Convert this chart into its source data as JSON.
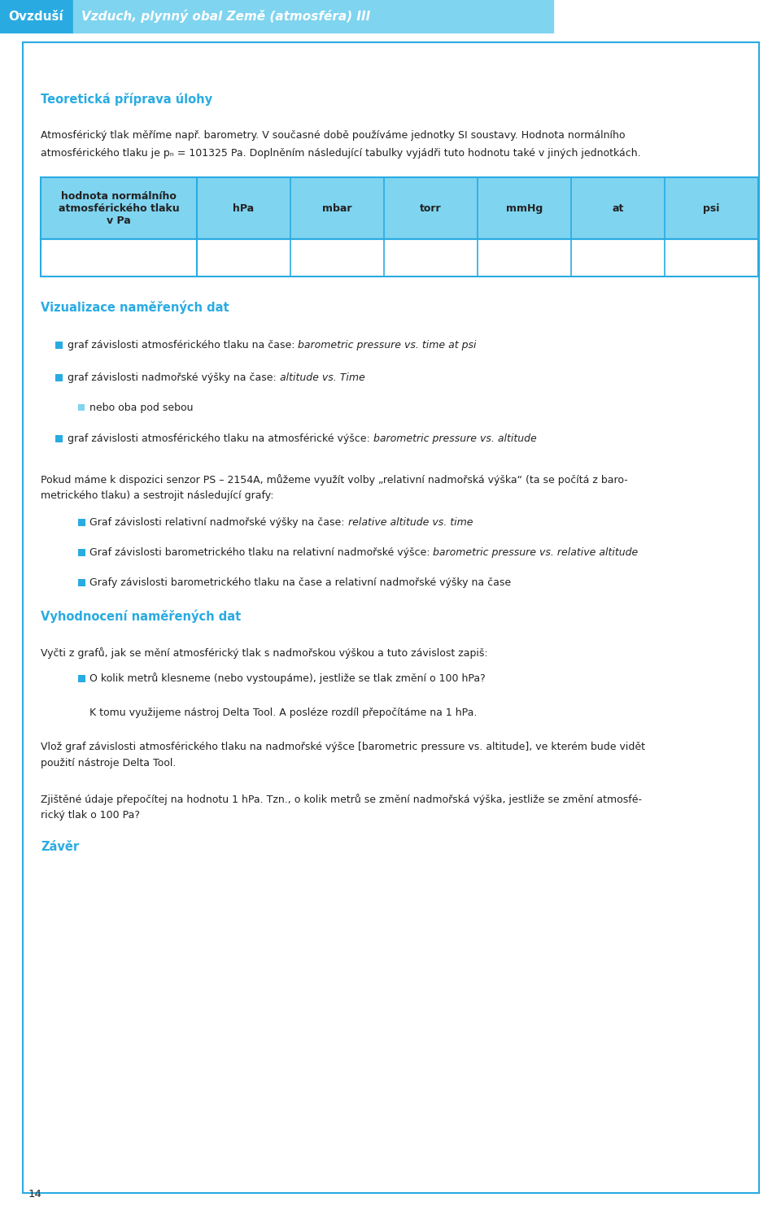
{
  "page_bg": "#ffffff",
  "header_bg1": "#29abe2",
  "header_bg2": "#7fd4f0",
  "header_text1": "Ovzduší",
  "header_text2": "Vzduch, plynný obal Země (atmos féra) III",
  "section1_title": "Teoretická příprava úlohy",
  "section1_title_color": "#29abe2",
  "table_header_col0": "hodnota normálního\natmosférického tlaku\nv Pa",
  "table_headers": [
    "hPa",
    "mbar",
    "torr",
    "mmHg",
    "at",
    "psi"
  ],
  "table_bg": "#7fd4f0",
  "table_border": "#29abe2",
  "section2_title": "Vizualizace naměřených dat",
  "section2_title_color": "#29abe2",
  "bullet_color": "#29abe2",
  "bullet_color2": "#7fd4f0",
  "bullet_level2": "nebo oba pod sebou",
  "bullets2_level1_3": "Grafy závislosti barometrického tlaku na čase a relativní nadmořské výšky na čase",
  "section3_title": "Vyhodnocení naměřených dat",
  "section3_title_color": "#29abe2",
  "para3": "Vyčti z grafů, jak se mění atmosférický tlak s nadmořskou výškou a tuto závislost zapiš:",
  "bullet3": "O kolik metrů klesneme (nebo vystoupáme), jestliže se tlak změní o 100 hPa?",
  "sub_bullet3": "K tomu využijeme nástroj Delta Tool. A posléze rozdíl přepočítáme na 1 hPa.",
  "section4_title": "Závěr",
  "section4_title_color": "#29abe2",
  "page_number": "14",
  "content_border_color": "#29abe2",
  "text_color": "#333333",
  "dark_text_color": "#222222"
}
